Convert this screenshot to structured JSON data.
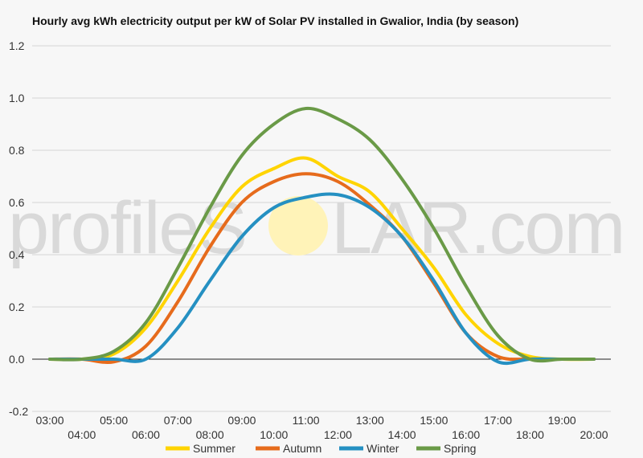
{
  "chart_data": {
    "type": "line",
    "title": "Hourly avg kWh electricity output per kW of Solar PV installed in Gwalior, India (by season)",
    "xlabel": "",
    "ylabel": "",
    "ylim": [
      -0.2,
      1.2
    ],
    "yticks": [
      "-0.2",
      "0.0",
      "0.2",
      "0.4",
      "0.6",
      "0.8",
      "1.0",
      "1.2"
    ],
    "grid": true,
    "legend": "bottom",
    "x": [
      "03:00",
      "04:00",
      "05:00",
      "06:00",
      "07:00",
      "08:00",
      "09:00",
      "10:00",
      "11:00",
      "12:00",
      "13:00",
      "14:00",
      "15:00",
      "16:00",
      "17:00",
      "18:00",
      "19:00",
      "20:00"
    ],
    "series": [
      {
        "name": "Summer",
        "color": "#ffd400",
        "values": [
          0.0,
          0.0,
          0.02,
          0.12,
          0.3,
          0.5,
          0.66,
          0.73,
          0.77,
          0.7,
          0.64,
          0.5,
          0.35,
          0.17,
          0.06,
          0.01,
          0.0,
          0.0
        ]
      },
      {
        "name": "Autumn",
        "color": "#e66b1c",
        "values": [
          0.0,
          0.0,
          -0.01,
          0.05,
          0.22,
          0.43,
          0.6,
          0.68,
          0.71,
          0.68,
          0.59,
          0.47,
          0.29,
          0.1,
          0.01,
          0.0,
          0.0,
          0.0
        ]
      },
      {
        "name": "Winter",
        "color": "#2590c2",
        "values": [
          0.0,
          0.0,
          0.0,
          0.0,
          0.12,
          0.3,
          0.47,
          0.58,
          0.62,
          0.63,
          0.58,
          0.47,
          0.3,
          0.1,
          -0.01,
          0.0,
          0.0,
          0.0
        ]
      },
      {
        "name": "Spring",
        "color": "#6a9a47",
        "values": [
          0.0,
          0.0,
          0.03,
          0.14,
          0.35,
          0.58,
          0.78,
          0.9,
          0.96,
          0.92,
          0.84,
          0.69,
          0.5,
          0.28,
          0.09,
          0.0,
          0.0,
          0.0
        ]
      }
    ]
  },
  "watermark": {
    "text_before": "profileS",
    "text_after": "LAR.com",
    "sun_color": "#fff3b8"
  }
}
